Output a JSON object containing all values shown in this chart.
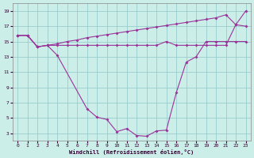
{
  "xlabel": "Windchill (Refroidissement éolien,°C)",
  "bg_color": "#cceee8",
  "line_color": "#993399",
  "grid_color": "#99cccc",
  "xlim": [
    -0.5,
    23.5
  ],
  "ylim": [
    2.0,
    20.0
  ],
  "xticks": [
    0,
    1,
    2,
    3,
    4,
    5,
    6,
    7,
    8,
    9,
    10,
    11,
    12,
    13,
    14,
    15,
    16,
    17,
    18,
    19,
    20,
    21,
    22,
    23
  ],
  "yticks": [
    3,
    5,
    7,
    9,
    11,
    13,
    15,
    17,
    19
  ],
  "line_top_x": [
    0,
    1,
    2,
    3,
    4,
    5,
    6,
    7,
    8,
    9,
    10,
    11,
    12,
    13,
    14,
    15,
    16,
    17,
    18,
    19,
    20,
    21,
    22,
    23
  ],
  "line_top_y": [
    15.8,
    15.8,
    14.3,
    14.5,
    14.7,
    15.0,
    15.2,
    15.5,
    15.7,
    15.9,
    16.1,
    16.3,
    16.5,
    16.7,
    16.9,
    17.1,
    17.3,
    17.5,
    17.7,
    17.9,
    18.1,
    18.5,
    17.2,
    19.0
  ],
  "line_mid_x": [
    0,
    1,
    2,
    3,
    4,
    5,
    6,
    7,
    8,
    9,
    10,
    11,
    12,
    13,
    14,
    15,
    16,
    17,
    18,
    19,
    20,
    21,
    22,
    23
  ],
  "line_mid_y": [
    15.8,
    15.8,
    14.3,
    14.5,
    14.5,
    14.5,
    14.5,
    14.5,
    14.5,
    14.5,
    14.5,
    14.5,
    14.5,
    14.5,
    14.5,
    15.0,
    14.5,
    14.5,
    14.5,
    14.5,
    14.5,
    14.5,
    17.2,
    17.0
  ],
  "line_bot_x": [
    0,
    1,
    2,
    3,
    4,
    7,
    8,
    9,
    10,
    11,
    12,
    13,
    14,
    15,
    16,
    17,
    18,
    19,
    20,
    21,
    22,
    23
  ],
  "line_bot_y": [
    15.8,
    15.8,
    14.3,
    14.5,
    13.2,
    6.2,
    5.1,
    4.8,
    3.2,
    3.6,
    2.7,
    2.6,
    3.3,
    3.4,
    8.3,
    12.3,
    13.0,
    15.0,
    15.0,
    15.0,
    15.0,
    15.0
  ]
}
